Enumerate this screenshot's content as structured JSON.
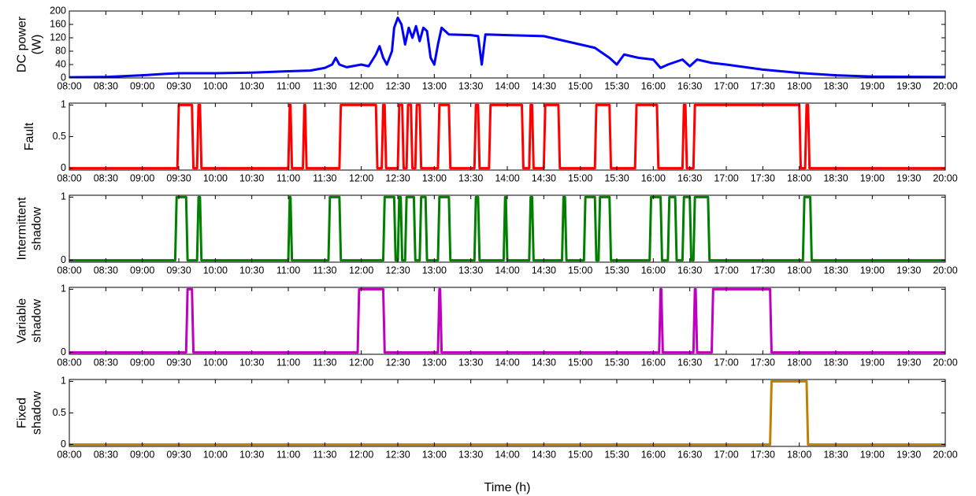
{
  "chart_data": [
    {
      "type": "line",
      "ylabel": [
        "DC power",
        "(W)"
      ],
      "xlim": [
        8,
        20
      ],
      "ylim": [
        0,
        200
      ],
      "yticks": [
        0,
        40,
        80,
        120,
        160,
        200
      ],
      "xticks": [
        {
          "value": 8,
          "label": "08:00"
        },
        {
          "value": 8.5,
          "label": "08:30"
        },
        {
          "value": 9,
          "label": "09:00"
        },
        {
          "value": 9.5,
          "label": "09:30"
        },
        {
          "value": 10,
          "label": "10:00"
        },
        {
          "value": 10.5,
          "label": "10:30"
        },
        {
          "value": 11,
          "label": "11:00"
        },
        {
          "value": 11.5,
          "label": "11:30"
        },
        {
          "value": 12,
          "label": "12:00"
        },
        {
          "value": 12.5,
          "label": "12:30"
        },
        {
          "value": 13,
          "label": "13:00"
        },
        {
          "value": 13.5,
          "label": "13:30"
        },
        {
          "value": 14,
          "label": "14:00"
        },
        {
          "value": 14.5,
          "label": "14:30"
        },
        {
          "value": 15,
          "label": "15:00"
        },
        {
          "value": 15.5,
          "label": "15:30"
        },
        {
          "value": 16,
          "label": "16:00"
        },
        {
          "value": 16.5,
          "label": "16:30"
        },
        {
          "value": 17,
          "label": "17:00"
        },
        {
          "value": 17.5,
          "label": "17:30"
        },
        {
          "value": 18,
          "label": "18:00"
        },
        {
          "value": 18.5,
          "label": "18:30"
        },
        {
          "value": 19,
          "label": "19:00"
        },
        {
          "value": 19.5,
          "label": "19:30"
        },
        {
          "value": 20,
          "label": "20:00"
        }
      ],
      "color": "#0000ff",
      "x": [
        8,
        8.5,
        9,
        9.3,
        9.5,
        10,
        10.5,
        11,
        11.3,
        11.5,
        11.6,
        11.65,
        11.7,
        11.8,
        12,
        12.1,
        12.2,
        12.25,
        12.3,
        12.35,
        12.42,
        12.45,
        12.5,
        12.55,
        12.6,
        12.65,
        12.7,
        12.75,
        12.8,
        12.85,
        12.9,
        12.95,
        13,
        13.05,
        13.1,
        13.2,
        13.5,
        13.6,
        13.65,
        13.7,
        14,
        14.5,
        14.8,
        15,
        15.2,
        15.4,
        15.5,
        15.6,
        15.8,
        16,
        16.1,
        16.2,
        16.4,
        16.5,
        16.6,
        16.8,
        17,
        17.5,
        18,
        18.5,
        19,
        20
      ],
      "values": [
        2,
        3,
        8,
        12,
        14,
        14,
        16,
        20,
        22,
        30,
        40,
        60,
        40,
        32,
        40,
        35,
        70,
        95,
        60,
        40,
        80,
        150,
        180,
        160,
        100,
        150,
        120,
        155,
        110,
        150,
        140,
        60,
        40,
        100,
        150,
        130,
        128,
        125,
        40,
        130,
        128,
        125,
        110,
        100,
        90,
        60,
        40,
        70,
        60,
        55,
        30,
        40,
        55,
        35,
        55,
        45,
        40,
        25,
        15,
        8,
        4,
        3
      ]
    },
    {
      "type": "line",
      "ylabel": [
        "Fault"
      ],
      "xlim": [
        8,
        20
      ],
      "ylim": [
        -0.03,
        1.03
      ],
      "yticks": [
        0,
        0.5,
        1
      ],
      "xticks": [
        {
          "value": 8,
          "label": "08:00"
        },
        {
          "value": 8.5,
          "label": "08:30"
        },
        {
          "value": 9,
          "label": "09:00"
        },
        {
          "value": 9.5,
          "label": "09:30"
        },
        {
          "value": 10,
          "label": "10:00"
        },
        {
          "value": 10.5,
          "label": "10:30"
        },
        {
          "value": 11,
          "label": "11:00"
        },
        {
          "value": 11.5,
          "label": "11:30"
        },
        {
          "value": 12,
          "label": "12:00"
        },
        {
          "value": 12.5,
          "label": "12:30"
        },
        {
          "value": 13,
          "label": "13:00"
        },
        {
          "value": 13.5,
          "label": "13:30"
        },
        {
          "value": 14,
          "label": "14:00"
        },
        {
          "value": 14.5,
          "label": "14:30"
        },
        {
          "value": 15,
          "label": "15:00"
        },
        {
          "value": 15.5,
          "label": "15:30"
        },
        {
          "value": 16,
          "label": "16:00"
        },
        {
          "value": 16.5,
          "label": "16:30"
        },
        {
          "value": 17,
          "label": "17:00"
        },
        {
          "value": 17.5,
          "label": "17:30"
        },
        {
          "value": 18,
          "label": "18:00"
        },
        {
          "value": 18.5,
          "label": "18:30"
        },
        {
          "value": 19,
          "label": "19:00"
        },
        {
          "value": 19.5,
          "label": "19:30"
        },
        {
          "value": 20,
          "label": "20:00"
        }
      ],
      "color": "#ff0000",
      "x": [
        8,
        9.48,
        9.5,
        9.68,
        9.7,
        9.75,
        9.77,
        9.79,
        9.81,
        11,
        11.02,
        11.03,
        11.05,
        11.2,
        11.22,
        11.23,
        11.25,
        11.7,
        11.72,
        12.2,
        12.22,
        12.28,
        12.3,
        12.32,
        12.34,
        12.5,
        12.52,
        12.56,
        12.58,
        12.62,
        12.64,
        12.68,
        12.7,
        12.74,
        12.76,
        12.8,
        12.82,
        13.05,
        13.07,
        13.2,
        13.22,
        13.55,
        13.57,
        13.6,
        13.62,
        13.75,
        13.77,
        14.2,
        14.22,
        14.3,
        14.32,
        14.34,
        14.36,
        14.5,
        14.52,
        14.7,
        14.72,
        15.2,
        15.22,
        15.4,
        15.42,
        15.75,
        15.77,
        16.05,
        16.07,
        16.4,
        16.42,
        16.44,
        16.46,
        16.55,
        16.57,
        18,
        18.02,
        18.08,
        18.1,
        18.12,
        18.14,
        20
      ],
      "values": [
        0,
        0,
        1,
        1,
        0,
        0,
        1,
        1,
        0,
        0,
        1,
        1,
        0,
        0,
        1,
        1,
        0,
        0,
        1,
        1,
        0,
        0,
        1,
        1,
        0,
        0,
        1,
        1,
        0,
        0,
        1,
        1,
        0,
        0,
        1,
        1,
        0,
        0,
        1,
        1,
        0,
        0,
        1,
        1,
        0,
        0,
        1,
        1,
        0,
        0,
        1,
        1,
        0,
        0,
        1,
        1,
        0,
        0,
        1,
        1,
        0,
        0,
        1,
        1,
        0,
        0,
        1,
        1,
        0,
        0,
        1,
        1,
        0,
        0,
        1,
        1,
        0,
        0
      ]
    },
    {
      "type": "line",
      "ylabel": [
        "Intermittent",
        "shadow"
      ],
      "xlim": [
        8,
        20
      ],
      "ylim": [
        -0.03,
        1.03
      ],
      "yticks": [
        0,
        1
      ],
      "xticks": [
        {
          "value": 8,
          "label": "08:00"
        },
        {
          "value": 8.5,
          "label": "08:30"
        },
        {
          "value": 9,
          "label": "09:00"
        },
        {
          "value": 9.5,
          "label": "09:30"
        },
        {
          "value": 10,
          "label": "10:00"
        },
        {
          "value": 10.5,
          "label": "10:30"
        },
        {
          "value": 11,
          "label": "11:00"
        },
        {
          "value": 11.5,
          "label": "11:30"
        },
        {
          "value": 12,
          "label": "12:00"
        },
        {
          "value": 12.5,
          "label": "12:30"
        },
        {
          "value": 13,
          "label": "13:00"
        },
        {
          "value": 13.5,
          "label": "13:30"
        },
        {
          "value": 14,
          "label": "14:00"
        },
        {
          "value": 14.5,
          "label": "14:30"
        },
        {
          "value": 15,
          "label": "15:00"
        },
        {
          "value": 15.5,
          "label": "15:30"
        },
        {
          "value": 16,
          "label": "16:00"
        },
        {
          "value": 16.5,
          "label": "16:30"
        },
        {
          "value": 17,
          "label": "17:00"
        },
        {
          "value": 17.5,
          "label": "17:30"
        },
        {
          "value": 18,
          "label": "18:00"
        },
        {
          "value": 18.5,
          "label": "18:30"
        },
        {
          "value": 19,
          "label": "19:00"
        },
        {
          "value": 19.5,
          "label": "19:30"
        },
        {
          "value": 20,
          "label": "20:00"
        }
      ],
      "color": "#008000",
      "x": [
        8,
        9.45,
        9.47,
        9.6,
        9.62,
        9.75,
        9.77,
        9.79,
        9.81,
        11,
        11.02,
        11.03,
        11.05,
        11.55,
        11.57,
        11.7,
        11.72,
        12.3,
        12.32,
        12.45,
        12.47,
        12.5,
        12.52,
        12.54,
        12.56,
        12.6,
        12.62,
        12.72,
        12.74,
        12.8,
        12.82,
        12.88,
        12.9,
        13.05,
        13.07,
        13.2,
        13.22,
        13.55,
        13.57,
        13.6,
        13.62,
        13.95,
        13.97,
        13.98,
        14,
        14.3,
        14.32,
        14.34,
        14.36,
        14.75,
        14.77,
        14.79,
        14.81,
        15.05,
        15.07,
        15.2,
        15.22,
        15.25,
        15.27,
        15.4,
        15.42,
        15.95,
        15.97,
        16.1,
        16.12,
        16.2,
        16.22,
        16.3,
        16.32,
        16.4,
        16.42,
        16.5,
        16.52,
        16.55,
        16.57,
        16.75,
        16.77,
        18.05,
        18.07,
        18.15,
        18.17,
        20
      ],
      "values": [
        0,
        0,
        1,
        1,
        0,
        0,
        1,
        1,
        0,
        0,
        1,
        1,
        0,
        0,
        1,
        1,
        0,
        0,
        1,
        1,
        0,
        0,
        1,
        1,
        0,
        0,
        1,
        1,
        0,
        0,
        1,
        1,
        0,
        0,
        1,
        1,
        0,
        0,
        1,
        1,
        0,
        0,
        1,
        1,
        0,
        0,
        1,
        1,
        0,
        0,
        1,
        1,
        0,
        0,
        1,
        1,
        0,
        0,
        1,
        1,
        0,
        0,
        1,
        1,
        0,
        0,
        1,
        1,
        0,
        0,
        1,
        1,
        0,
        0,
        1,
        1,
        0,
        0,
        1,
        1,
        0,
        0
      ]
    },
    {
      "type": "line",
      "ylabel": [
        "Variable",
        "shadow"
      ],
      "xlim": [
        8,
        20
      ],
      "ylim": [
        -0.03,
        1.03
      ],
      "yticks": [
        0,
        1
      ],
      "xticks": [
        {
          "value": 8,
          "label": "08:00"
        },
        {
          "value": 8.5,
          "label": "08:30"
        },
        {
          "value": 9,
          "label": "09:00"
        },
        {
          "value": 9.5,
          "label": "09:30"
        },
        {
          "value": 10,
          "label": "10:00"
        },
        {
          "value": 10.5,
          "label": "10:30"
        },
        {
          "value": 11,
          "label": "11:00"
        },
        {
          "value": 11.5,
          "label": "11:30"
        },
        {
          "value": 12,
          "label": "12:00"
        },
        {
          "value": 12.5,
          "label": "12:30"
        },
        {
          "value": 13,
          "label": "13:00"
        },
        {
          "value": 13.5,
          "label": "13:30"
        },
        {
          "value": 14,
          "label": "14:00"
        },
        {
          "value": 14.5,
          "label": "14:30"
        },
        {
          "value": 15,
          "label": "15:00"
        },
        {
          "value": 15.5,
          "label": "15:30"
        },
        {
          "value": 16,
          "label": "16:00"
        },
        {
          "value": 16.5,
          "label": "16:30"
        },
        {
          "value": 17,
          "label": "17:00"
        },
        {
          "value": 17.5,
          "label": "17:30"
        },
        {
          "value": 18,
          "label": "18:00"
        },
        {
          "value": 18.5,
          "label": "18:30"
        },
        {
          "value": 19,
          "label": "19:00"
        },
        {
          "value": 19.5,
          "label": "19:30"
        },
        {
          "value": 20,
          "label": "20:00"
        }
      ],
      "color": "#bf00bf",
      "x": [
        8,
        9.6,
        9.62,
        9.68,
        9.7,
        11.95,
        11.97,
        12.3,
        12.32,
        13.05,
        13.07,
        13.08,
        13.1,
        16.08,
        16.1,
        16.11,
        16.13,
        16.55,
        16.57,
        16.58,
        16.6,
        16.8,
        16.82,
        17.6,
        17.62,
        20
      ],
      "values": [
        0,
        0,
        1,
        1,
        0,
        0,
        1,
        1,
        0,
        0,
        1,
        1,
        0,
        0,
        1,
        1,
        0,
        0,
        1,
        1,
        0,
        0,
        1,
        1,
        0,
        0
      ]
    },
    {
      "type": "line",
      "ylabel": [
        "Fixed",
        "shadow"
      ],
      "xlabel": "Time (h)",
      "xlim": [
        8,
        20
      ],
      "ylim": [
        -0.03,
        1.03
      ],
      "yticks": [
        0,
        0.5,
        1
      ],
      "xticks": [
        {
          "value": 8,
          "label": "08:00"
        },
        {
          "value": 8.5,
          "label": "08:30"
        },
        {
          "value": 9,
          "label": "09:00"
        },
        {
          "value": 9.5,
          "label": "09:30"
        },
        {
          "value": 10,
          "label": "10:00"
        },
        {
          "value": 10.5,
          "label": "10:30"
        },
        {
          "value": 11,
          "label": "11:00"
        },
        {
          "value": 11.5,
          "label": "11:30"
        },
        {
          "value": 12,
          "label": "12:00"
        },
        {
          "value": 12.5,
          "label": "12:30"
        },
        {
          "value": 13,
          "label": "13:00"
        },
        {
          "value": 13.5,
          "label": "13:30"
        },
        {
          "value": 14,
          "label": "14:00"
        },
        {
          "value": 14.5,
          "label": "14:30"
        },
        {
          "value": 15,
          "label": "15:00"
        },
        {
          "value": 15.5,
          "label": "15:30"
        },
        {
          "value": 16,
          "label": "16:00"
        },
        {
          "value": 16.5,
          "label": "16:30"
        },
        {
          "value": 17,
          "label": "17:00"
        },
        {
          "value": 17.5,
          "label": "17:30"
        },
        {
          "value": 18,
          "label": "18:00"
        },
        {
          "value": 18.5,
          "label": "18:30"
        },
        {
          "value": 19,
          "label": "19:00"
        },
        {
          "value": 19.5,
          "label": "19:30"
        },
        {
          "value": 20,
          "label": "20:00"
        }
      ],
      "color": "#bf8000",
      "x": [
        8,
        17.6,
        17.62,
        18.1,
        18.12,
        20
      ],
      "values": [
        0,
        0,
        1,
        1,
        0,
        0
      ]
    }
  ]
}
